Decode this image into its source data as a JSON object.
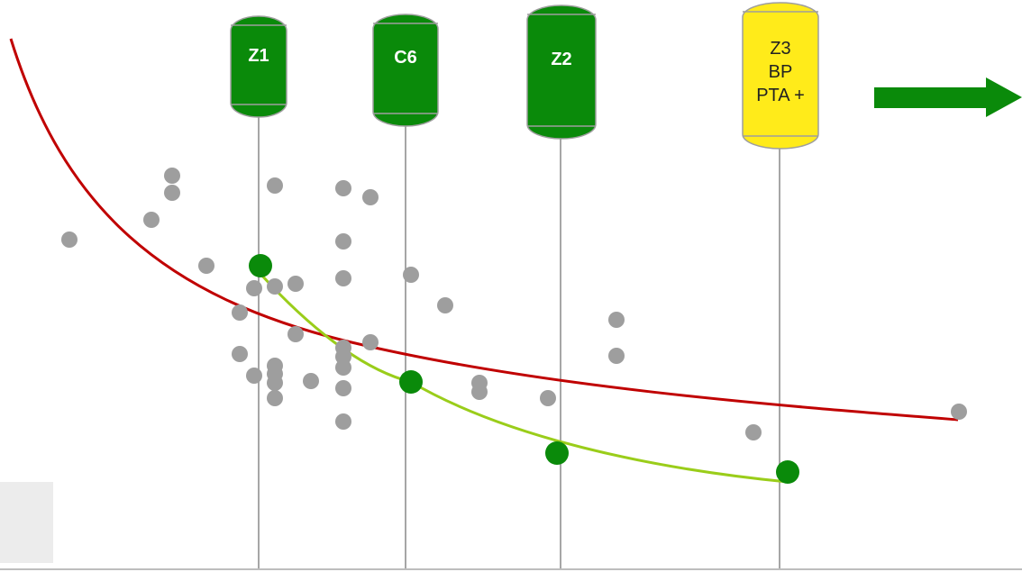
{
  "colors": {
    "dark_green": "#0a8a0a",
    "yellow": "#ffeb1a",
    "gray_point": "#9e9e9e",
    "red_curve": "#c00000",
    "light_green_curve": "#9acd1a",
    "guide_line": "#a6a6a6"
  },
  "markers": [
    {
      "id": "z1",
      "lines": [
        "Z1"
      ],
      "style": "green"
    },
    {
      "id": "c6",
      "lines": [
        "C6"
      ],
      "style": "green"
    },
    {
      "id": "z2",
      "lines": [
        "Z2"
      ],
      "style": "green"
    },
    {
      "id": "z3",
      "lines": [
        "Z3",
        "BP",
        "PTA +"
      ],
      "style": "yellow"
    }
  ],
  "arrow_icon": "right-arrow-icon"
}
